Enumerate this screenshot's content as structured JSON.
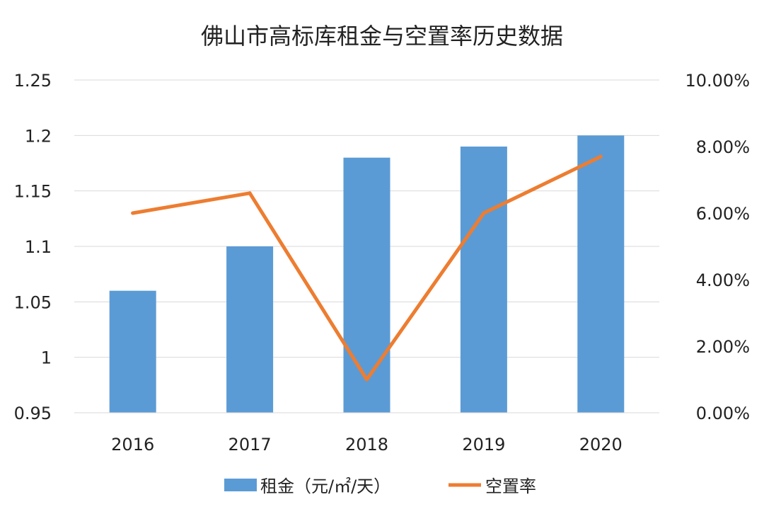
{
  "chart_data": {
    "type": "bar",
    "title": "佛山市高标库租金与空置率历史数据",
    "categories": [
      "2016",
      "2017",
      "2018",
      "2019",
      "2020"
    ],
    "series": [
      {
        "name": "租金（元/㎡/天）",
        "type": "bar",
        "axis": "left",
        "color": "#5b9bd5",
        "values": [
          1.06,
          1.1,
          1.18,
          1.19,
          1.2
        ]
      },
      {
        "name": "空置率",
        "type": "line",
        "axis": "right",
        "color": "#ed7d31",
        "values": [
          0.06,
          0.066,
          0.01,
          0.06,
          0.077
        ]
      }
    ],
    "left_axis": {
      "ylim": [
        0.95,
        1.25
      ],
      "ticks": [
        0.95,
        1.0,
        1.05,
        1.1,
        1.15,
        1.2,
        1.25
      ],
      "tick_labels": [
        "0.95",
        "1",
        "1.05",
        "1.1",
        "1.15",
        "1.2",
        "1.25"
      ]
    },
    "right_axis": {
      "ylim": [
        0.0,
        0.1
      ],
      "ticks": [
        0.0,
        0.02,
        0.04,
        0.06,
        0.08,
        0.1
      ],
      "tick_labels": [
        "0.00%",
        "2.00%",
        "4.00%",
        "6.00%",
        "8.00%",
        "10.00%"
      ]
    },
    "grid": true,
    "legend_position": "bottom"
  }
}
